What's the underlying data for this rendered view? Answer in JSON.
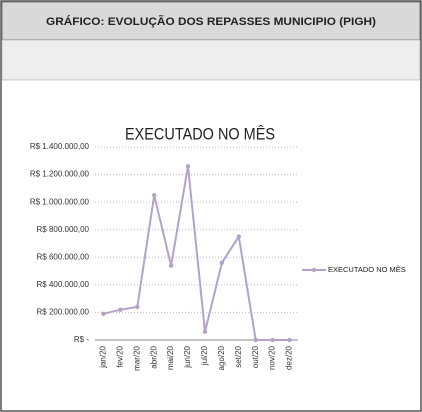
{
  "header": {
    "title": "GRÁFICO: EVOLUÇÃO DOS REPASSES MUNICIPIO (PIGH)"
  },
  "chart_data": {
    "type": "line",
    "title": "EXECUTADO NO MÊS",
    "categories": [
      "jan/20",
      "fev/20",
      "mar/20",
      "abr/20",
      "mai/20",
      "jun/20",
      "jul/20",
      "ago/20",
      "set/20",
      "out/20",
      "nov/20",
      "dez/20"
    ],
    "series": [
      {
        "name": "EXECUTADO NO MÊS",
        "color": "#b3a3c6",
        "values": [
          190000,
          220000,
          240000,
          1050000,
          540000,
          1260000,
          60000,
          560000,
          750000,
          0,
          0,
          0
        ]
      }
    ],
    "ylim": [
      0,
      1400000
    ],
    "yticks": [
      {
        "value": 0,
        "label": "R$ -"
      },
      {
        "value": 200000,
        "label": "R$ 200.000,00"
      },
      {
        "value": 400000,
        "label": "R$ 400.000,00"
      },
      {
        "value": 600000,
        "label": "R$ 600.000,00"
      },
      {
        "value": 800000,
        "label": "R$ 800.000,00"
      },
      {
        "value": 1000000,
        "label": "R$ 1.000.000,00"
      },
      {
        "value": 1200000,
        "label": "R$ 1.200.000,00"
      },
      {
        "value": 1400000,
        "label": "R$ 1.400.000,00"
      }
    ],
    "grid": true,
    "legend": "right"
  }
}
